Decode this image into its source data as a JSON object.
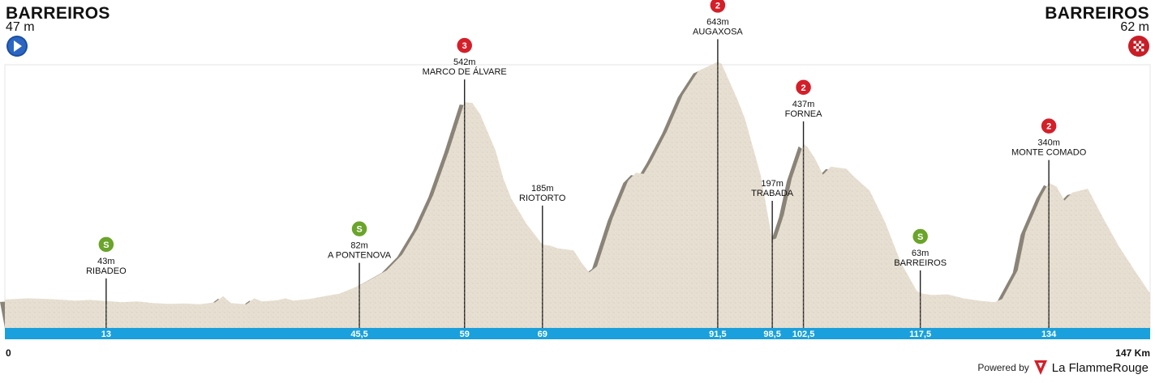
{
  "start": {
    "city": "BARREIROS",
    "altitude": "47 m",
    "icon": "play-icon"
  },
  "finish": {
    "city": "BARREIROS",
    "altitude": "62 m",
    "icon": "checkered-flag-icon"
  },
  "profile": {
    "total_km": 147,
    "km_start_label": "0",
    "km_end_label": "147 Km",
    "max_alt": 700,
    "colors": {
      "terrain": "#e7dfd1",
      "shadow": "#8a8478",
      "bar": "#1aa0dc",
      "climb": "#d41f29",
      "sprint": "#6aa42a"
    },
    "points": [
      [
        0,
        47
      ],
      [
        3,
        50
      ],
      [
        6,
        48
      ],
      [
        9,
        44
      ],
      [
        11,
        46
      ],
      [
        13,
        43
      ],
      [
        15,
        40
      ],
      [
        17,
        42
      ],
      [
        19,
        38
      ],
      [
        21,
        36
      ],
      [
        23,
        37
      ],
      [
        25,
        35
      ],
      [
        27,
        40
      ],
      [
        28,
        55
      ],
      [
        29,
        38
      ],
      [
        31,
        35
      ],
      [
        32,
        50
      ],
      [
        33,
        42
      ],
      [
        35,
        45
      ],
      [
        36,
        50
      ],
      [
        37,
        44
      ],
      [
        39,
        48
      ],
      [
        41,
        55
      ],
      [
        43,
        62
      ],
      [
        44,
        70
      ],
      [
        45.5,
        82
      ],
      [
        47,
        98
      ],
      [
        49,
        120
      ],
      [
        51,
        160
      ],
      [
        53,
        225
      ],
      [
        55,
        310
      ],
      [
        57,
        420
      ],
      [
        59,
        542
      ],
      [
        60,
        540
      ],
      [
        61,
        512
      ],
      [
        63,
        420
      ],
      [
        64,
        350
      ],
      [
        65,
        300
      ],
      [
        67,
        235
      ],
      [
        69,
        185
      ],
      [
        70,
        182
      ],
      [
        71,
        175
      ],
      [
        73,
        170
      ],
      [
        74,
        140
      ],
      [
        75,
        115
      ],
      [
        76,
        130
      ],
      [
        77,
        190
      ],
      [
        78,
        250
      ],
      [
        80,
        345
      ],
      [
        81,
        365
      ],
      [
        82,
        362
      ],
      [
        83,
        395
      ],
      [
        85,
        470
      ],
      [
        87,
        560
      ],
      [
        89,
        620
      ],
      [
        91.5,
        643
      ],
      [
        92,
        638
      ],
      [
        94,
        550
      ],
      [
        95,
        500
      ],
      [
        97,
        360
      ],
      [
        98.5,
        197
      ],
      [
        99,
        200
      ],
      [
        100,
        260
      ],
      [
        101,
        350
      ],
      [
        102.5,
        437
      ],
      [
        103,
        430
      ],
      [
        104,
        400
      ],
      [
        105,
        360
      ],
      [
        106,
        380
      ],
      [
        108,
        375
      ],
      [
        109,
        355
      ],
      [
        111,
        320
      ],
      [
        113,
        240
      ],
      [
        115,
        140
      ],
      [
        117,
        70
      ],
      [
        117.5,
        63
      ],
      [
        119,
        58
      ],
      [
        121,
        60
      ],
      [
        123,
        50
      ],
      [
        125,
        44
      ],
      [
        127,
        40
      ],
      [
        128,
        48
      ],
      [
        130,
        120
      ],
      [
        131,
        215
      ],
      [
        133,
        305
      ],
      [
        134,
        340
      ],
      [
        135,
        330
      ],
      [
        136,
        295
      ],
      [
        137,
        315
      ],
      [
        139,
        325
      ],
      [
        141,
        250
      ],
      [
        143,
        180
      ],
      [
        145,
        120
      ],
      [
        147,
        62
      ]
    ],
    "waypoints": [
      {
        "km": 13,
        "km_label": "13",
        "alt_label": "43m",
        "name": "RIBADEO",
        "badge": "S",
        "kind": "sprint"
      },
      {
        "km": 45.5,
        "km_label": "45,5",
        "alt_label": "82m",
        "name": "A PONTENOVA",
        "badge": "S",
        "kind": "sprint"
      },
      {
        "km": 59,
        "km_label": "59",
        "alt_label": "542m",
        "name": "MARCO DE ÁLVARE",
        "badge": "3",
        "kind": "climb"
      },
      {
        "km": 69,
        "km_label": "69",
        "alt_label": "185m",
        "name": "RIOTORTO",
        "badge": "",
        "kind": "none"
      },
      {
        "km": 91.5,
        "km_label": "91,5",
        "alt_label": "643m",
        "name": "AUGAXOSA",
        "badge": "2",
        "kind": "climb"
      },
      {
        "km": 98.5,
        "km_label": "98,5",
        "alt_label": "197m",
        "name": "TRABADA",
        "badge": "",
        "kind": "none"
      },
      {
        "km": 102.5,
        "km_label": "102,5",
        "alt_label": "437m",
        "name": "FORNEA",
        "badge": "2",
        "kind": "climb"
      },
      {
        "km": 117.5,
        "km_label": "117,5",
        "alt_label": "63m",
        "name": "BARREIROS",
        "badge": "S",
        "kind": "sprint"
      },
      {
        "km": 134,
        "km_label": "134",
        "alt_label": "340m",
        "name": "MONTE COMADO",
        "badge": "2",
        "kind": "climb"
      }
    ]
  },
  "footer": {
    "powered_by": "Powered by",
    "brand": "La FlammeRouge",
    "brand_icon": "flamme-rouge-icon"
  }
}
